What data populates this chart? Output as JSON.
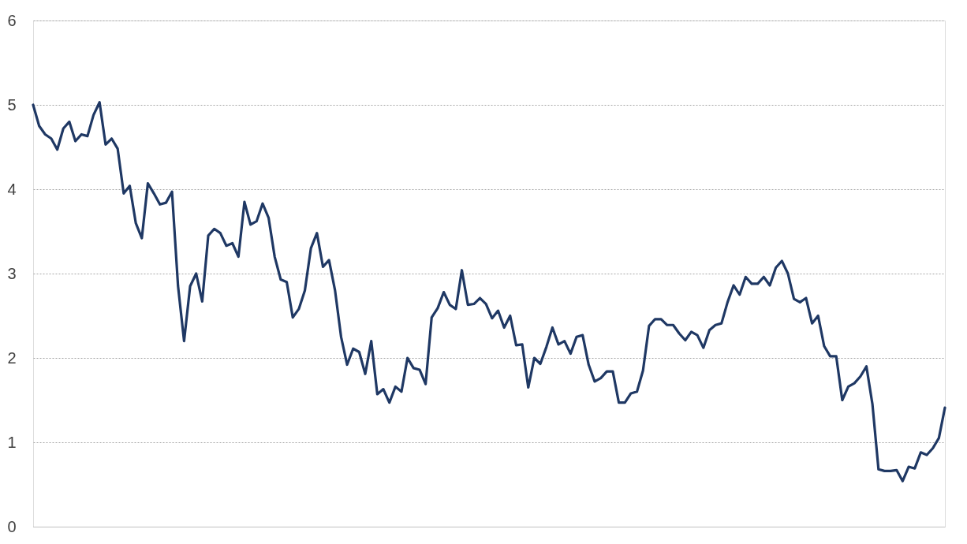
{
  "chart_data": {
    "type": "line",
    "categories": [
      null,
      null,
      null,
      null,
      null,
      null,
      null,
      null,
      null,
      null,
      null,
      null,
      null,
      null,
      null,
      null,
      null,
      null,
      null,
      null,
      null,
      null,
      null,
      null,
      null,
      null,
      null,
      null,
      null,
      null,
      null,
      null,
      null,
      null,
      null,
      null,
      null,
      null,
      null,
      null,
      null,
      null,
      null,
      null,
      null,
      null,
      null,
      null,
      null,
      null,
      null,
      null,
      null,
      null,
      null,
      null,
      null,
      null,
      null,
      null,
      null,
      null,
      null,
      null,
      null,
      null,
      null,
      null,
      null,
      null,
      null,
      null,
      null,
      null,
      null,
      null,
      null,
      null,
      null,
      null,
      null,
      null,
      null,
      null,
      null,
      null,
      null,
      null,
      null,
      null,
      null,
      null,
      null,
      null,
      null,
      null,
      null,
      null,
      null,
      null,
      null,
      null,
      null,
      null,
      null,
      null,
      null,
      null,
      null,
      null,
      null,
      null,
      null,
      null,
      null,
      null,
      null,
      null,
      null,
      null,
      null,
      null,
      null,
      null,
      null,
      null,
      null,
      null,
      null,
      null,
      null,
      null,
      null,
      null,
      null,
      null,
      null,
      null,
      null,
      null,
      null,
      null,
      null,
      null,
      null,
      null,
      null,
      null,
      null,
      null,
      null,
      null
    ],
    "series": [
      {
        "color": "#1f3864",
        "values": [
          5.0,
          4.75,
          4.65,
          4.6,
          4.47,
          4.72,
          4.8,
          4.57,
          4.65,
          4.63,
          4.88,
          5.03,
          4.53,
          4.6,
          4.48,
          3.95,
          4.04,
          3.6,
          3.42,
          4.07,
          3.95,
          3.82,
          3.84,
          3.97,
          2.85,
          2.2,
          2.85,
          3.0,
          2.67,
          3.45,
          3.53,
          3.48,
          3.33,
          3.36,
          3.2,
          3.85,
          3.58,
          3.62,
          3.83,
          3.66,
          3.2,
          2.93,
          2.9,
          2.48,
          2.58,
          2.8,
          3.3,
          3.48,
          3.08,
          3.16,
          2.8,
          2.25,
          1.92,
          2.11,
          2.07,
          1.81,
          2.2,
          1.57,
          1.63,
          1.47,
          1.66,
          1.6,
          2.0,
          1.88,
          1.86,
          1.69,
          2.48,
          2.59,
          2.78,
          2.63,
          2.58,
          3.04,
          2.63,
          2.64,
          2.71,
          2.64,
          2.47,
          2.56,
          2.36,
          2.5,
          2.15,
          2.16,
          1.65,
          2.0,
          1.93,
          2.13,
          2.36,
          2.16,
          2.2,
          2.05,
          2.25,
          2.27,
          1.92,
          1.72,
          1.76,
          1.84,
          1.84,
          1.47,
          1.47,
          1.58,
          1.6,
          1.85,
          2.38,
          2.46,
          2.46,
          2.39,
          2.39,
          2.29,
          2.21,
          2.31,
          2.27,
          2.12,
          2.33,
          2.39,
          2.41,
          2.66,
          2.86,
          2.75,
          2.96,
          2.88,
          2.88,
          2.96,
          2.86,
          3.07,
          3.15,
          3.0,
          2.7,
          2.66,
          2.71,
          2.41,
          2.5,
          2.14,
          2.02,
          2.02,
          1.5,
          1.66,
          1.7,
          1.78,
          1.9,
          1.45,
          0.68,
          0.66,
          0.66,
          0.67,
          0.54,
          0.71,
          0.69,
          0.88,
          0.85,
          0.93,
          1.05,
          1.41
        ]
      }
    ],
    "ylim": [
      0,
      6
    ],
    "yticks": [
      0,
      1,
      2,
      3,
      4,
      5,
      6
    ],
    "grid": "y",
    "tick_labels": "y",
    "line_style": "solid",
    "marker": "none"
  }
}
